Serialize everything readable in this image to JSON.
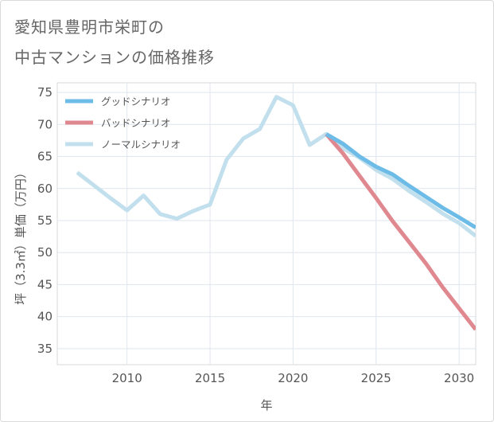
{
  "header": {
    "title_line1": "愛知県豊明市栄町の",
    "title_line2": "中古マンションの価格推移"
  },
  "chart_data": {
    "type": "line",
    "title": "愛知県豊明市栄町の中古マンションの価格推移",
    "xlabel": "年",
    "ylabel": "坪（3.3㎡）単価（万円）",
    "xlim": [
      2005.8,
      2031
    ],
    "ylim": [
      32.5,
      76.5
    ],
    "x_ticks": [
      2010,
      2015,
      2020,
      2025,
      2030
    ],
    "y_ticks": [
      35,
      40,
      45,
      50,
      55,
      60,
      65,
      70,
      75
    ],
    "grid": true,
    "legend_position": "top-left",
    "series": [
      {
        "name": "ノーマルシナリオ",
        "color": "#c1dfec",
        "x": [
          2007,
          2008,
          2009,
          2010,
          2011,
          2012,
          2013,
          2014,
          2015,
          2016,
          2017,
          2018,
          2019,
          2020,
          2021,
          2022,
          2023,
          2024,
          2025,
          2026,
          2027,
          2028,
          2029,
          2030,
          2031
        ],
        "values": [
          62.5,
          60.5,
          58.5,
          56.6,
          58.9,
          56.0,
          55.3,
          56.5,
          57.5,
          64.5,
          67.8,
          69.3,
          74.3,
          73.0,
          66.8,
          68.5,
          66.3,
          64.8,
          62.9,
          61.5,
          59.6,
          57.9,
          56.1,
          54.6,
          52.6
        ]
      },
      {
        "name": "グッドシナリオ",
        "color": "#6dbbe7",
        "x": [
          2022,
          2023,
          2024,
          2025,
          2026,
          2027,
          2028,
          2029,
          2030,
          2031
        ],
        "values": [
          68.5,
          67.0,
          65.0,
          63.4,
          62.2,
          60.4,
          58.7,
          57.0,
          55.5,
          53.9
        ]
      },
      {
        "name": "バッドシナリオ",
        "color": "#e0888f",
        "x": [
          2022,
          2023,
          2024,
          2025,
          2026,
          2027,
          2028,
          2029,
          2030,
          2031
        ],
        "values": [
          68.5,
          65.5,
          62.0,
          58.5,
          54.9,
          51.6,
          48.3,
          44.6,
          41.3,
          38.0
        ]
      }
    ],
    "legend": [
      "グッドシナリオ",
      "バッドシナリオ",
      "ノーマルシナリオ"
    ]
  }
}
